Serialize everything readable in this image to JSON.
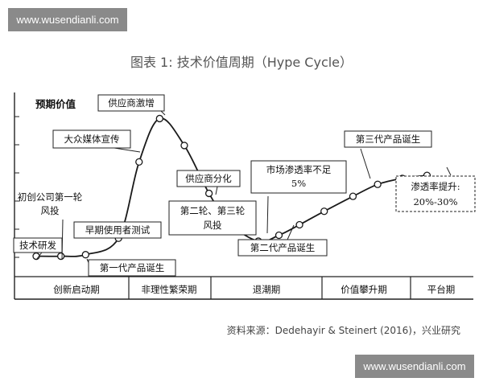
{
  "watermark_top": "www.wusendianli.com",
  "watermark_bottom": "www.wusendianli.com",
  "title": "图表 1:  技术价值周期（Hype Cycle）",
  "source": "资料来源：Dedehayir & Steinert (2016)，兴业研究",
  "chart_data": {
    "type": "line",
    "title": "图表 1:  技术价值周期（Hype Cycle）",
    "ylabel": "预期价值",
    "xlabel": "",
    "grid": false,
    "phases": [
      "创新启动期",
      "非理性繁荣期",
      "退潮期",
      "价值攀升期",
      "平台期"
    ],
    "series": [
      {
        "points": [
          {
            "x": 0.0,
            "y": 0.04,
            "label": "技术研发"
          },
          {
            "x": 0.06,
            "y": 0.04,
            "label": "初创公司第一轮风投"
          },
          {
            "x": 0.12,
            "y": 0.05,
            "label": "第一代产品诞生"
          },
          {
            "x": 0.2,
            "y": 0.16,
            "label": "早期使用者测试"
          },
          {
            "x": 0.25,
            "y": 0.67,
            "label": "大众媒体宣传"
          },
          {
            "x": 0.3,
            "y": 0.96,
            "label": "供应商激增"
          },
          {
            "x": 0.36,
            "y": 0.78
          },
          {
            "x": 0.42,
            "y": 0.46,
            "label": "供应商分化"
          },
          {
            "x": 0.47,
            "y": 0.26,
            "label": "第二轮、第三轮风投"
          },
          {
            "x": 0.54,
            "y": 0.14
          },
          {
            "x": 0.59,
            "y": 0.18,
            "label": "市场渗透率不足5%"
          },
          {
            "x": 0.64,
            "y": 0.25,
            "label": "第二代产品诞生"
          },
          {
            "x": 0.7,
            "y": 0.34
          },
          {
            "x": 0.77,
            "y": 0.44
          },
          {
            "x": 0.83,
            "y": 0.52,
            "label": "第三代产品诞生"
          },
          {
            "x": 0.89,
            "y": 0.56
          },
          {
            "x": 0.95,
            "y": 0.58,
            "label": "渗透率提升:20%-30%"
          }
        ]
      }
    ]
  }
}
